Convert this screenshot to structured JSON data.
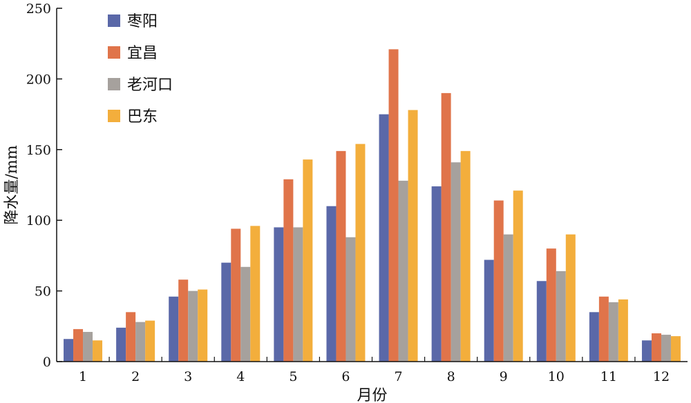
{
  "chart_data": {
    "type": "bar",
    "title": "",
    "xlabel": "月份",
    "ylabel": "降水量/mm",
    "ylim": [
      0,
      250
    ],
    "yticks": [
      0,
      50,
      100,
      150,
      200,
      250
    ],
    "categories": [
      "1",
      "2",
      "3",
      "4",
      "5",
      "6",
      "7",
      "8",
      "9",
      "10",
      "11",
      "12"
    ],
    "grid": false,
    "legend_position": "top-left",
    "series": [
      {
        "name": "枣阳",
        "color": "#5a68a8",
        "values": [
          16,
          24,
          46,
          70,
          95,
          110,
          175,
          124,
          72,
          57,
          35,
          15
        ]
      },
      {
        "name": "宜昌",
        "color": "#e0744a",
        "values": [
          23,
          35,
          58,
          94,
          129,
          149,
          221,
          190,
          114,
          80,
          46,
          20
        ]
      },
      {
        "name": "老河口",
        "color": "#a6a19d",
        "values": [
          21,
          28,
          50,
          67,
          95,
          88,
          128,
          141,
          90,
          64,
          42,
          19
        ]
      },
      {
        "name": "巴东",
        "color": "#f3ae3c",
        "values": [
          15,
          29,
          51,
          96,
          143,
          154,
          178,
          149,
          121,
          90,
          44,
          18
        ]
      }
    ]
  }
}
